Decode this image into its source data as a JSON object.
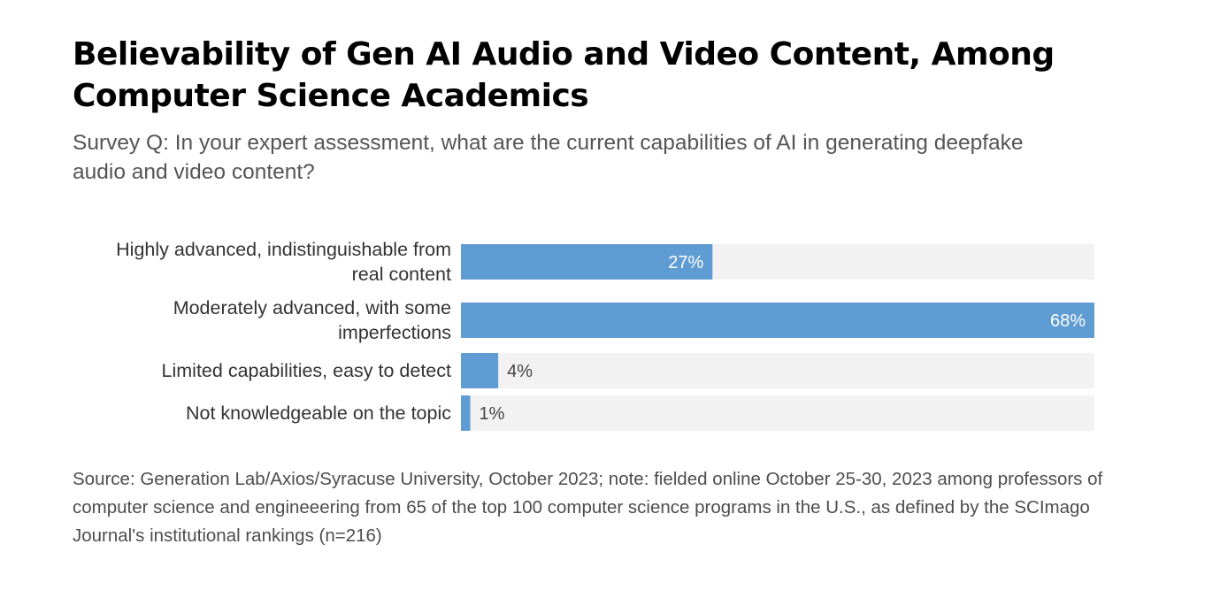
{
  "title": "Believability of Gen AI Audio and Video Content, Among Computer Science Academics",
  "subtitle": "Survey Q: In your expert assessment, what are the current capabilities of AI in generating deepfake audio and video content?",
  "source": "Source: Generation Lab/Axios/Syracuse University, October 2023; note: fielded online October 25-30, 2023 among professors of computer science and engineeering from 65 of the top 100 computer science programs in the U.S., as defined by the SCImago Journal's institutional rankings (n=216)",
  "colors": {
    "bar": "#5f9cd3",
    "track": "#f2f2f2",
    "label": "#333333",
    "value_inside": "#ffffff",
    "value_outside": "#444444"
  },
  "chart_data": {
    "type": "bar",
    "orientation": "horizontal",
    "categories": [
      [
        "Highly advanced, indistinguishable from",
        "real content"
      ],
      [
        "Moderately advanced, with some",
        "imperfections"
      ],
      [
        "Limited capabilities, easy to detect"
      ],
      [
        "Not knowledgeable on the topic"
      ]
    ],
    "values": [
      27,
      68,
      4,
      1
    ],
    "value_labels": [
      "27%",
      "68%",
      "4%",
      "1%"
    ],
    "xlim": [
      0,
      68
    ],
    "grid": false,
    "legend": "none"
  }
}
